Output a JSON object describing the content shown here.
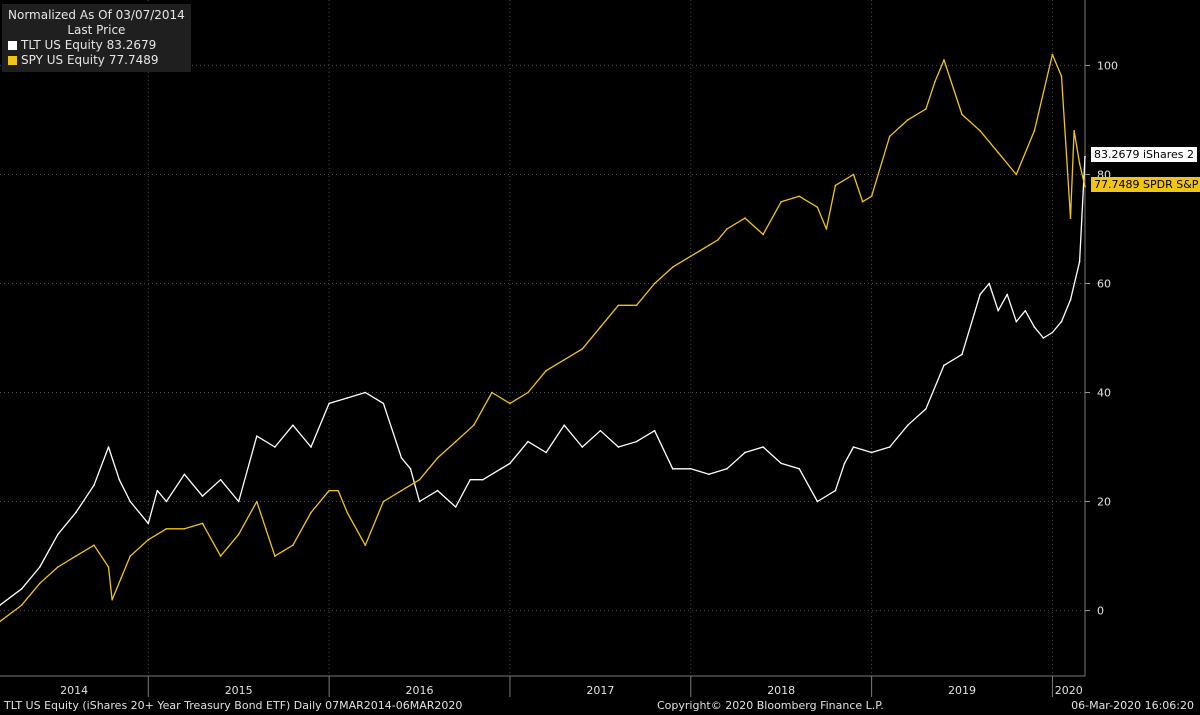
{
  "legend": {
    "title": "Normalized As Of 03/07/2014",
    "subtitle": "Last Price",
    "items": [
      {
        "label": "TLT US Equity",
        "value": "83.2679",
        "color": "#ffffff"
      },
      {
        "label": "SPY US Equity",
        "value": "77.7489",
        "color": "#f0c419"
      }
    ]
  },
  "tags": [
    {
      "text": "83.2679 iShares 2",
      "bg": "#ffffff",
      "fg": "#000000"
    },
    {
      "text": "77.7489 SPDR S&P",
      "bg": "#f0c419",
      "fg": "#000000"
    }
  ],
  "footer": {
    "left": "TLT US Equity (iShares 20+ Year Treasury Bond ETF)  Daily 07MAR2014-06MAR2020",
    "center": "Copyright© 2020 Bloomberg Finance L.P.",
    "right": "06-Mar-2020 16:06:20"
  },
  "chart_data": {
    "type": "line",
    "ylim": [
      -12,
      112
    ],
    "yticks": [
      0,
      20,
      40,
      60,
      80,
      100
    ],
    "xlim": [
      2014.18,
      2020.18
    ],
    "xlabels": [
      "2014",
      "2015",
      "2016",
      "2017",
      "2018",
      "2019",
      "2020"
    ],
    "grid": true,
    "series": [
      {
        "name": "TLT US Equity",
        "color": "#ffffff",
        "x": [
          2014.18,
          2014.3,
          2014.4,
          2014.5,
          2014.6,
          2014.7,
          2014.78,
          2014.84,
          2014.9,
          2015.0,
          2015.05,
          2015.1,
          2015.2,
          2015.3,
          2015.4,
          2015.5,
          2015.6,
          2015.7,
          2015.8,
          2015.9,
          2016.0,
          2016.1,
          2016.2,
          2016.3,
          2016.4,
          2016.45,
          2016.5,
          2016.6,
          2016.7,
          2016.78,
          2016.85,
          2016.95,
          2017.0,
          2017.1,
          2017.2,
          2017.3,
          2017.4,
          2017.5,
          2017.6,
          2017.7,
          2017.8,
          2017.9,
          2018.0,
          2018.1,
          2018.2,
          2018.3,
          2018.4,
          2018.5,
          2018.6,
          2018.7,
          2018.8,
          2018.85,
          2018.9,
          2019.0,
          2019.1,
          2019.2,
          2019.3,
          2019.4,
          2019.5,
          2019.6,
          2019.65,
          2019.7,
          2019.75,
          2019.8,
          2019.85,
          2019.9,
          2019.95,
          2020.0,
          2020.05,
          2020.1,
          2020.15,
          2020.18
        ],
        "y": [
          1,
          4,
          8,
          14,
          18,
          23,
          30,
          24,
          20,
          16,
          22,
          20,
          25,
          21,
          24,
          20,
          32,
          30,
          34,
          30,
          38,
          39,
          40,
          38,
          28,
          26,
          20,
          22,
          19,
          24,
          24,
          26,
          27,
          31,
          29,
          34,
          30,
          33,
          30,
          31,
          33,
          26,
          26,
          25,
          26,
          29,
          30,
          27,
          26,
          20,
          22,
          27,
          30,
          29,
          30,
          34,
          37,
          45,
          47,
          58,
          60,
          55,
          58,
          53,
          55,
          52,
          50,
          51,
          53,
          57,
          64,
          83.27
        ]
      },
      {
        "name": "SPY US Equity",
        "color": "#f0c419",
        "x": [
          2014.18,
          2014.3,
          2014.4,
          2014.5,
          2014.6,
          2014.7,
          2014.78,
          2014.8,
          2014.85,
          2014.9,
          2015.0,
          2015.05,
          2015.1,
          2015.2,
          2015.3,
          2015.4,
          2015.5,
          2015.6,
          2015.65,
          2015.7,
          2015.75,
          2015.8,
          2015.9,
          2016.0,
          2016.05,
          2016.1,
          2016.2,
          2016.3,
          2016.4,
          2016.5,
          2016.6,
          2016.7,
          2016.8,
          2016.9,
          2017.0,
          2017.1,
          2017.2,
          2017.3,
          2017.4,
          2017.5,
          2017.6,
          2017.7,
          2017.8,
          2017.9,
          2018.0,
          2018.05,
          2018.1,
          2018.15,
          2018.2,
          2018.3,
          2018.4,
          2018.5,
          2018.6,
          2018.7,
          2018.75,
          2018.8,
          2018.9,
          2018.95,
          2019.0,
          2019.1,
          2019.2,
          2019.3,
          2019.35,
          2019.4,
          2019.5,
          2019.6,
          2019.7,
          2019.8,
          2019.9,
          2020.0,
          2020.05,
          2020.1,
          2020.12,
          2020.15,
          2020.18
        ],
        "y": [
          -2,
          1,
          5,
          8,
          10,
          12,
          8,
          2,
          6,
          10,
          13,
          14,
          15,
          15,
          16,
          10,
          14,
          20,
          15,
          10,
          11,
          12,
          18,
          22,
          22,
          18,
          12,
          20,
          22,
          24,
          28,
          31,
          34,
          40,
          38,
          40,
          44,
          46,
          48,
          52,
          56,
          56,
          60,
          63,
          65,
          66,
          67,
          68,
          70,
          72,
          69,
          75,
          76,
          74,
          70,
          78,
          80,
          75,
          76,
          87,
          90,
          92,
          97,
          101,
          91,
          88,
          84,
          80,
          88,
          102,
          98,
          72,
          88,
          82,
          77.75
        ]
      }
    ]
  }
}
